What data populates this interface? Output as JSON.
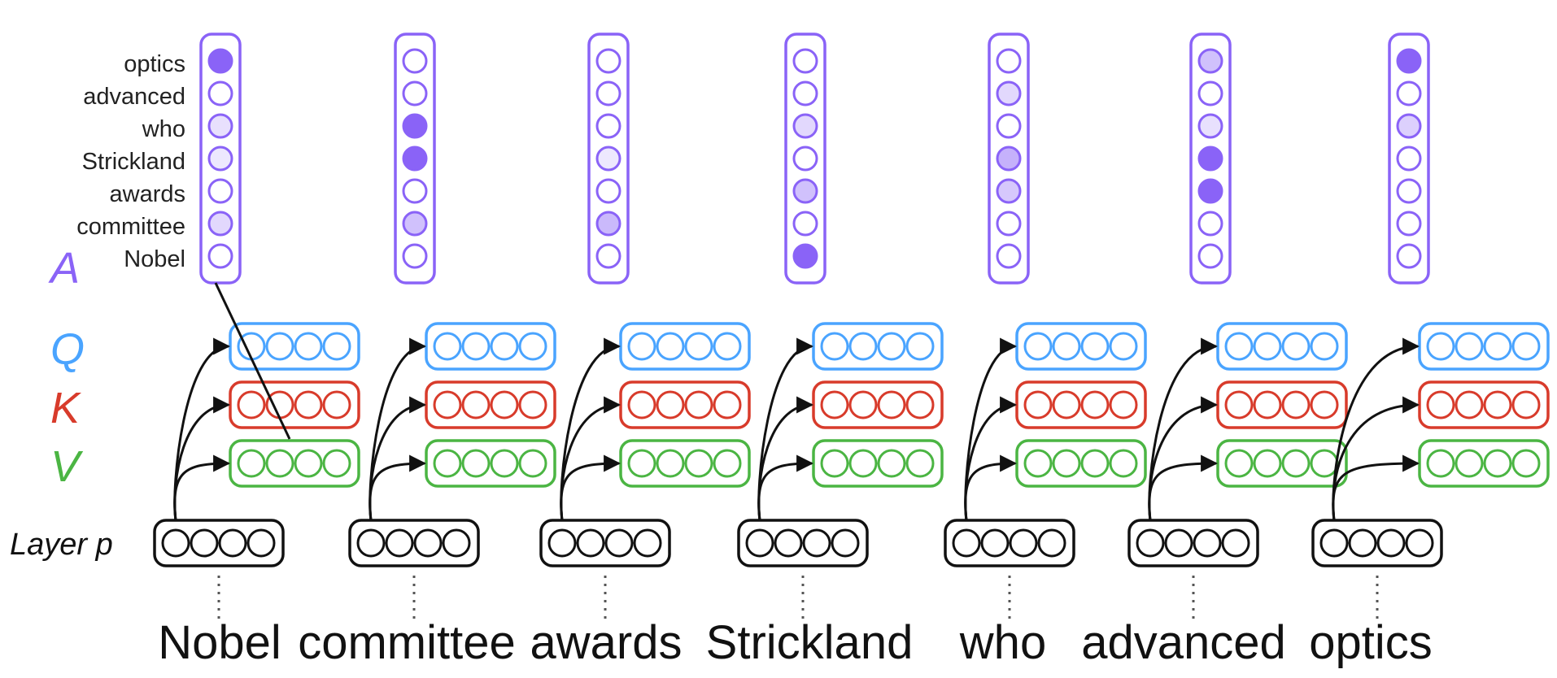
{
  "words": [
    "Nobel",
    "committee",
    "awards",
    "Strickland",
    "who",
    "advanced",
    "optics"
  ],
  "attention_labels": [
    "optics",
    "advanced",
    "who",
    "Strickland",
    "awards",
    "committee",
    "Nobel"
  ],
  "labels": {
    "A": "A",
    "Q": "Q",
    "K": "K",
    "V": "V",
    "layer": "Layer p"
  },
  "colors": {
    "attention": "#8a63f7",
    "query": "#4aa4ff",
    "key": "#d83b2b",
    "value": "#4bb543",
    "layer": "#111111",
    "arrow": "#111111"
  },
  "attention_weights": [
    [
      1.0,
      0.0,
      0.2,
      0.15,
      0.0,
      0.25,
      0.0
    ],
    [
      0.0,
      0.0,
      1.0,
      1.0,
      0.0,
      0.4,
      0.0
    ],
    [
      0.0,
      0.0,
      0.0,
      0.15,
      0.0,
      0.45,
      0.0
    ],
    [
      0.0,
      0.0,
      0.25,
      0.0,
      0.4,
      0.0,
      1.0
    ],
    [
      0.0,
      0.25,
      0.0,
      0.5,
      0.35,
      0.0,
      0.0
    ],
    [
      0.4,
      0.0,
      0.2,
      1.0,
      1.0,
      0.0,
      0.0
    ],
    [
      1.0,
      0.0,
      0.3,
      0.0,
      0.0,
      0.0,
      0.0
    ]
  ]
}
